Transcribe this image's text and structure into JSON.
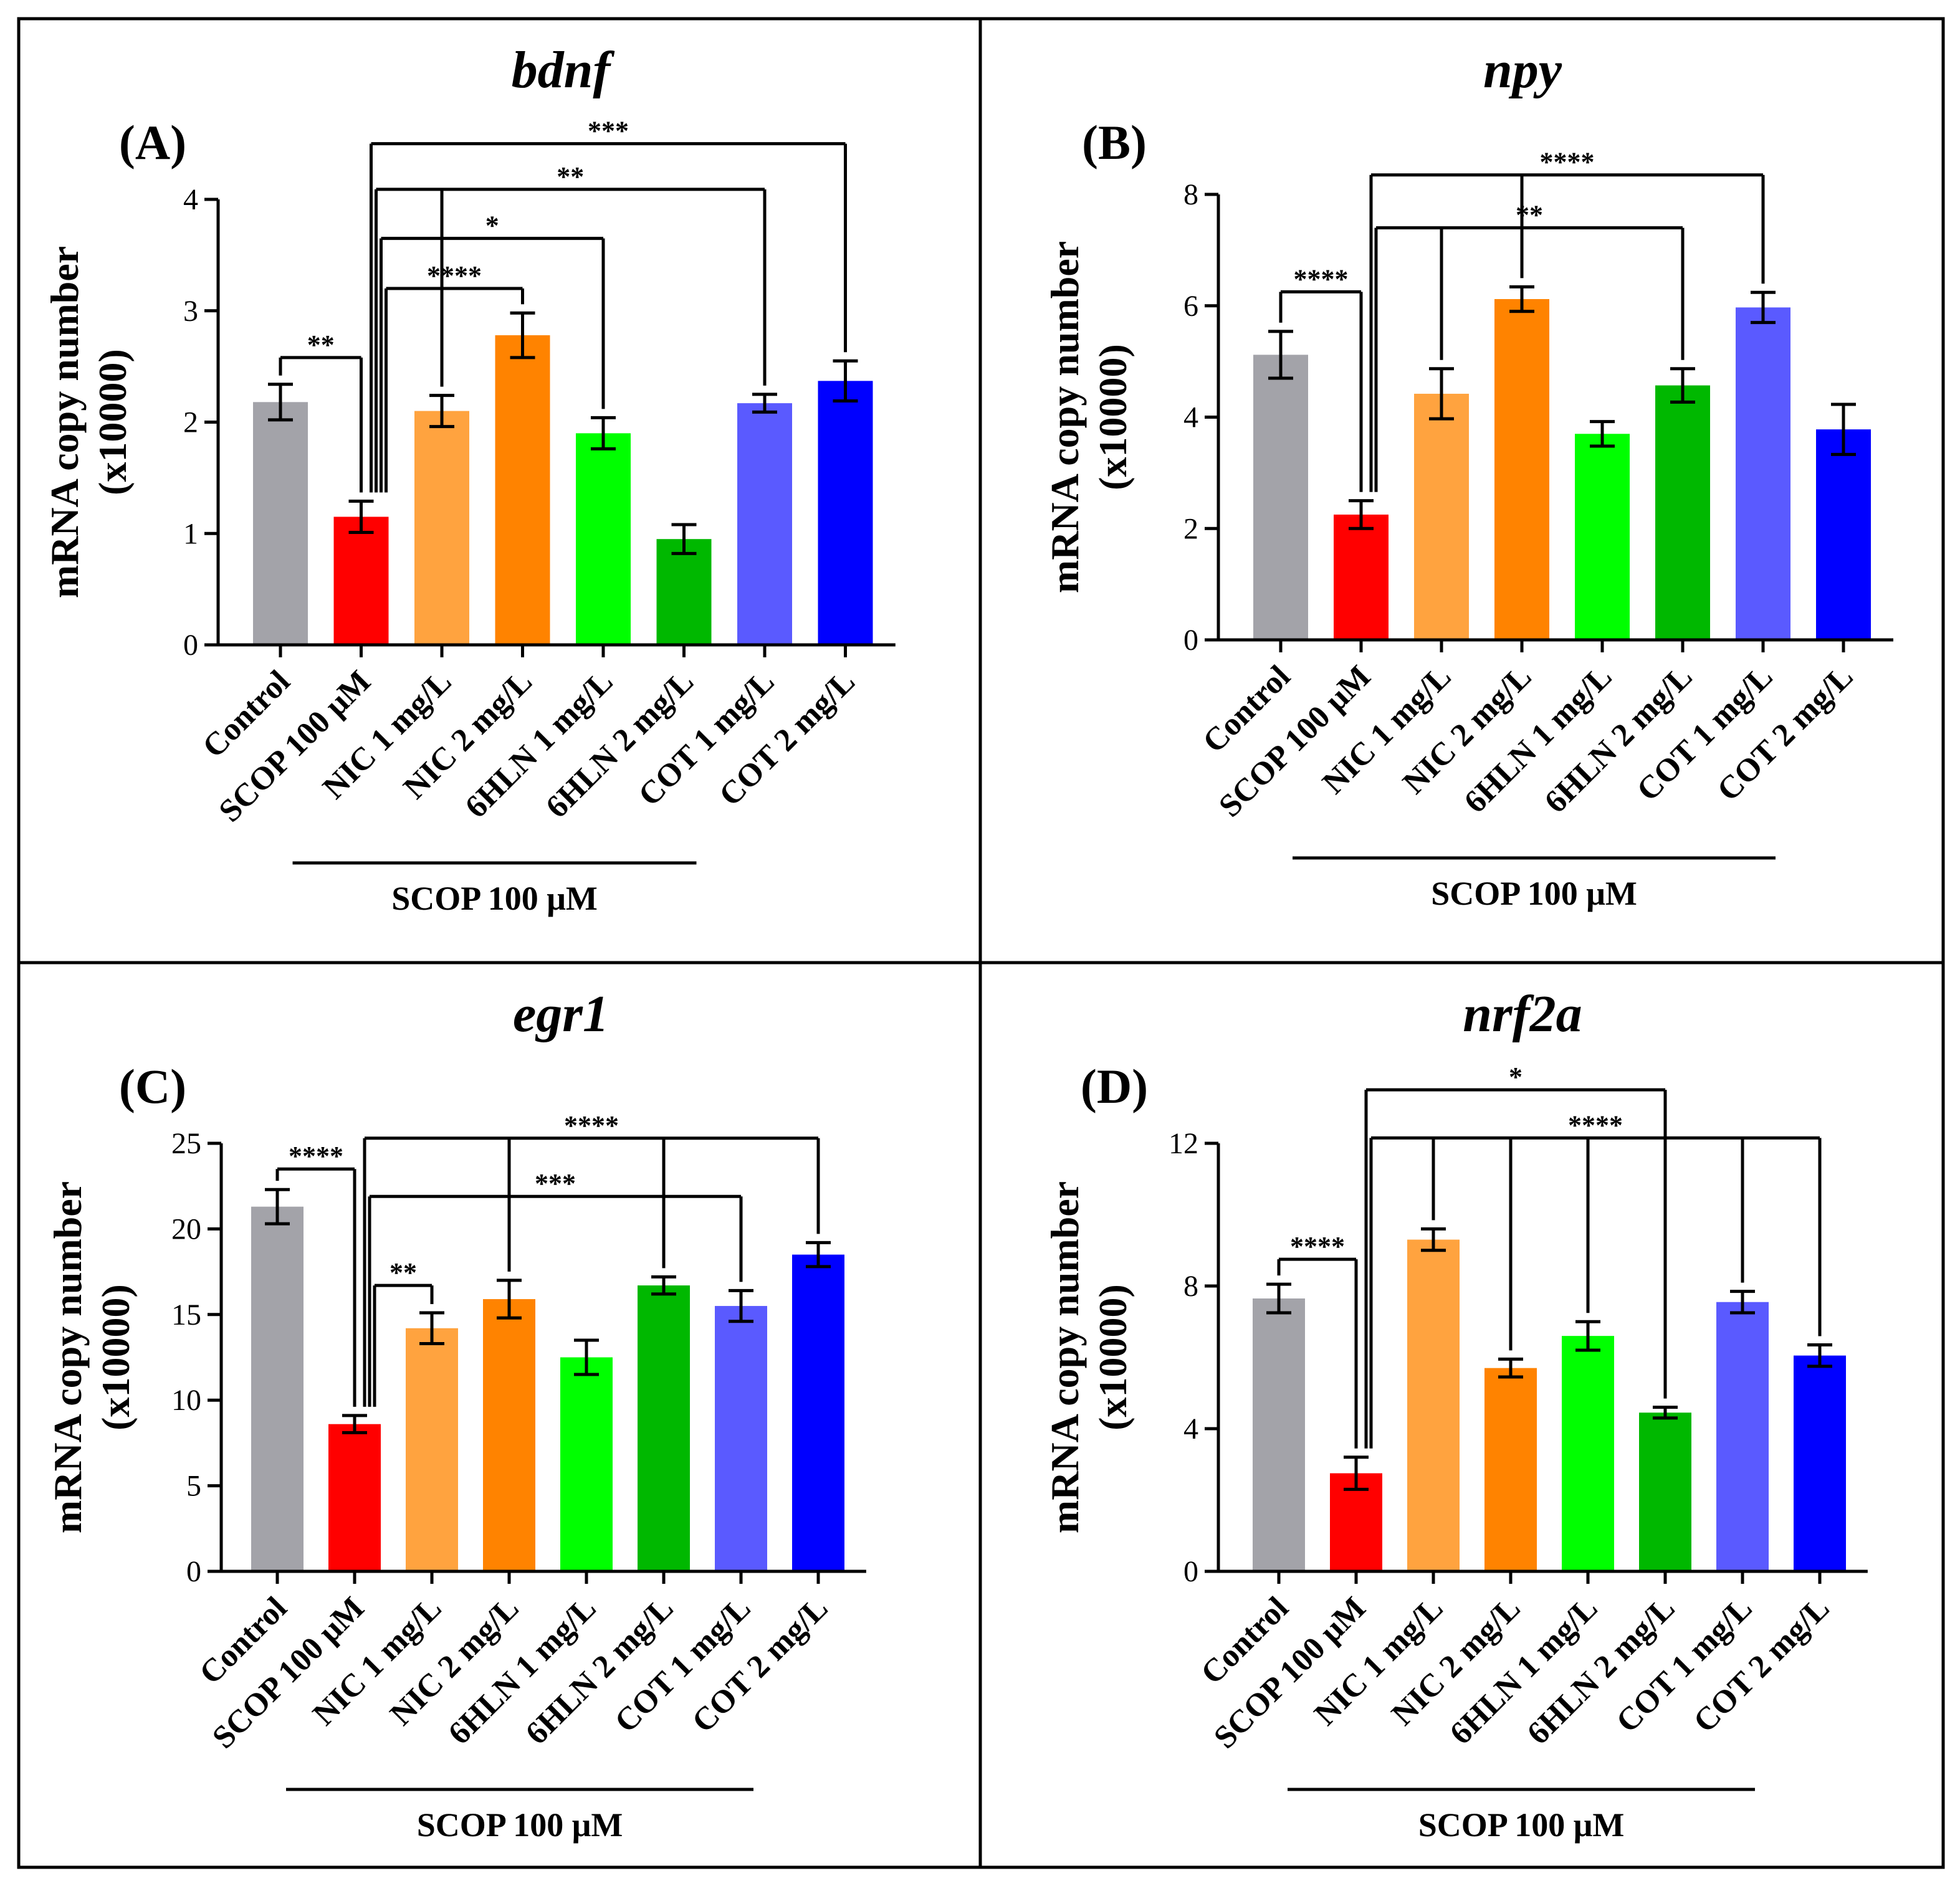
{
  "figure": {
    "group_label": "SCOP 100 μM",
    "y_label_line1": "mRNA copy number",
    "y_label_line2": "(x10000)"
  },
  "chart_data": [
    {
      "panel": "(A)",
      "type": "bar",
      "title": "bdnf",
      "xlabel": "",
      "ylabel": "mRNA copy number (x10000)",
      "categories": [
        "Control",
        "SCOP 100 μM",
        "NIC 1 mg/L",
        "NIC 2 mg/L",
        "6HLN 1 mg/L",
        "6HLN 2 mg/L",
        "COT 1 mg/L",
        "COT 2 mg/L"
      ],
      "values": [
        2.18,
        1.15,
        2.1,
        2.78,
        1.9,
        0.95,
        2.17,
        2.37
      ],
      "errors": [
        0.16,
        0.14,
        0.14,
        0.2,
        0.14,
        0.13,
        0.08,
        0.18
      ],
      "colors": [
        "#a3a3a9",
        "#ff0000",
        "#ffa33f",
        "#ff8300",
        "#00ff00",
        "#00b800",
        "#5a5aff",
        "#0000ff"
      ],
      "ylim": [
        0,
        4
      ],
      "yticks": [
        0,
        1,
        2,
        3,
        4
      ],
      "group_bar": [
        1,
        5
      ],
      "brackets": [
        {
          "from": 0,
          "to": 1,
          "label": "**",
          "y": 2.58,
          "to_ticks": true
        },
        {
          "from": 1,
          "to": 7,
          "label": "***",
          "y": 4.5,
          "to_ticks": true
        },
        {
          "from": 1,
          "to": 6,
          "label": "**",
          "y": 4.09,
          "to_ticks": true,
          "mid": [
            2
          ]
        },
        {
          "from": 1,
          "to": 4,
          "label": "*",
          "y": 3.65,
          "to_ticks": true
        },
        {
          "from": 1,
          "to": 3,
          "label": "****",
          "y": 3.2,
          "to_ticks": true
        }
      ]
    },
    {
      "panel": "(B)",
      "type": "bar",
      "title": "npy",
      "xlabel": "",
      "ylabel": "mRNA copy number (x10000)",
      "categories": [
        "Control",
        "SCOP 100 μM",
        "NIC 1 mg/L",
        "NIC 2 mg/L",
        "6HLN 1 mg/L",
        "6HLN 2 mg/L",
        "COT 1 mg/L",
        "COT 2 mg/L"
      ],
      "values": [
        5.12,
        2.25,
        4.42,
        6.12,
        3.7,
        4.57,
        5.97,
        3.78
      ],
      "errors": [
        0.42,
        0.25,
        0.45,
        0.22,
        0.22,
        0.3,
        0.27,
        0.45
      ],
      "colors": [
        "#a3a3a9",
        "#ff0000",
        "#ffa33f",
        "#ff8300",
        "#00ff00",
        "#00b800",
        "#5a5aff",
        "#0000ff"
      ],
      "ylim": [
        0,
        8
      ],
      "yticks": [
        0,
        2,
        4,
        6,
        8
      ],
      "group_bar": [
        1,
        6
      ],
      "brackets": [
        {
          "from": 0,
          "to": 1,
          "label": "****",
          "y": 6.25,
          "to_ticks": true
        },
        {
          "from": 1,
          "to": 6,
          "label": "****",
          "y": 8.35,
          "to_ticks": true,
          "mid": [
            3
          ]
        },
        {
          "from": 1,
          "to": 5,
          "label": "**",
          "y": 7.4,
          "to_ticks": true,
          "mid": [
            2
          ]
        }
      ]
    },
    {
      "panel": "(C)",
      "type": "bar",
      "title": "egr1",
      "xlabel": "",
      "ylabel": "mRNA copy number (x10000)",
      "categories": [
        "Control",
        "SCOP 100 μM",
        "NIC 1 mg/L",
        "NIC 2 mg/L",
        "6HLN 1 mg/L",
        "6HLN 2 mg/L",
        "COT 1 mg/L",
        "COT 2 mg/L"
      ],
      "values": [
        21.3,
        8.6,
        14.2,
        15.9,
        12.5,
        16.7,
        15.5,
        18.5
      ],
      "errors": [
        1.0,
        0.5,
        0.9,
        1.1,
        1.0,
        0.5,
        0.9,
        0.7
      ],
      "colors": [
        "#a3a3a9",
        "#ff0000",
        "#ffa33f",
        "#ff8300",
        "#00ff00",
        "#00b800",
        "#5a5aff",
        "#0000ff"
      ],
      "ylim": [
        0,
        25
      ],
      "yticks": [
        0,
        5,
        10,
        15,
        20,
        25
      ],
      "group_bar": [
        1,
        6
      ],
      "brackets": [
        {
          "from": 0,
          "to": 1,
          "label": "****",
          "y": 23.5,
          "to_ticks": true
        },
        {
          "from": 1,
          "to": 7,
          "label": "****",
          "y": 25.3,
          "to_ticks": true,
          "mid": [
            3,
            5
          ]
        },
        {
          "from": 1,
          "to": 6,
          "label": "***",
          "y": 21.9,
          "to_ticks": true
        },
        {
          "from": 1,
          "to": 2,
          "label": "**",
          "y": 16.7,
          "to_ticks": true
        }
      ]
    },
    {
      "panel": "(D)",
      "type": "bar",
      "title": "nrf2a",
      "xlabel": "",
      "ylabel": "mRNA copy number (x10000)",
      "categories": [
        "Control",
        "SCOP 100 μM",
        "NIC 1 mg/L",
        "NIC 2 mg/L",
        "6HLN 1 mg/L",
        "6HLN 2 mg/L",
        "COT 1 mg/L",
        "COT 2 mg/L"
      ],
      "values": [
        7.65,
        2.75,
        9.3,
        5.7,
        6.6,
        4.45,
        7.55,
        6.05
      ],
      "errors": [
        0.4,
        0.45,
        0.3,
        0.25,
        0.4,
        0.15,
        0.3,
        0.3
      ],
      "colors": [
        "#a3a3a9",
        "#ff0000",
        "#ffa33f",
        "#ff8300",
        "#00ff00",
        "#00b800",
        "#5a5aff",
        "#0000ff"
      ],
      "ylim": [
        0,
        12
      ],
      "yticks": [
        0,
        4,
        8,
        12
      ],
      "group_bar": [
        1,
        6
      ],
      "brackets": [
        {
          "from": 0,
          "to": 1,
          "label": "****",
          "y": 8.75,
          "to_ticks": true
        },
        {
          "from": 1,
          "to": 5,
          "label": "*",
          "y": 13.5,
          "to_ticks": true
        },
        {
          "from": 1,
          "to": 7,
          "label": "****",
          "y": 12.15,
          "to_ticks": true,
          "mid": [
            2,
            3,
            4,
            6
          ]
        }
      ]
    }
  ]
}
